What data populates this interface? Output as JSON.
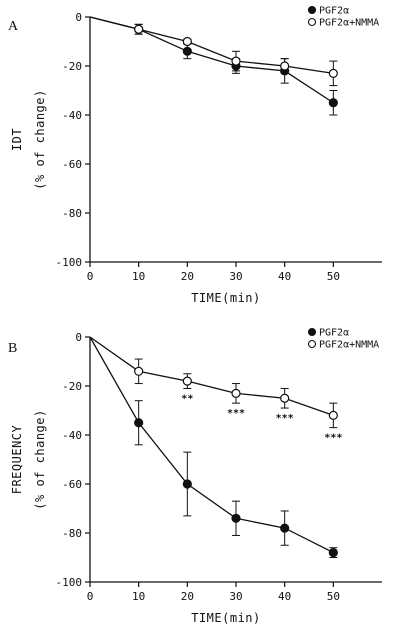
{
  "chart_data": [
    {
      "panel": "A",
      "type": "line",
      "x": [
        0,
        10,
        20,
        30,
        40,
        50
      ],
      "xticks": [
        0,
        10,
        20,
        30,
        40,
        50
      ],
      "yticks": [
        0,
        -20,
        -40,
        -60,
        -80,
        -100
      ],
      "xlim": [
        0,
        60
      ],
      "ylim": [
        -100,
        0
      ],
      "xlabel": "TIME(min)",
      "ylabel": "IDT",
      "ylabel_sub": "(% of change)",
      "legend_position": "top-right",
      "series": [
        {
          "name": "PGF2α",
          "marker": "filled-circle",
          "values": [
            0,
            -5,
            -14,
            -20,
            -22,
            -35
          ],
          "errors": [
            0,
            2,
            3,
            3,
            5,
            5
          ]
        },
        {
          "name": "PGF2α+NMMA",
          "marker": "open-circle",
          "values": [
            0,
            -5,
            -10,
            -18,
            -20,
            -23
          ],
          "errors": [
            0,
            2,
            1,
            4,
            3,
            5
          ]
        }
      ],
      "annotations": []
    },
    {
      "panel": "B",
      "type": "line",
      "x": [
        0,
        10,
        20,
        30,
        40,
        50
      ],
      "xticks": [
        0,
        10,
        20,
        30,
        40,
        50
      ],
      "yticks": [
        0,
        -20,
        -40,
        -60,
        -80,
        -100
      ],
      "xlim": [
        0,
        60
      ],
      "ylim": [
        -100,
        0
      ],
      "xlabel": "TIME(min)",
      "ylabel": "FREQUENCY",
      "ylabel_sub": "(% of change)",
      "legend_position": "top-right",
      "series": [
        {
          "name": "PGF2α",
          "marker": "filled-circle",
          "values": [
            0,
            -35,
            -60,
            -74,
            -78,
            -88
          ],
          "errors": [
            0,
            9,
            13,
            7,
            7,
            2
          ]
        },
        {
          "name": "PGF2α+NMMA",
          "marker": "open-circle",
          "values": [
            0,
            -14,
            -18,
            -23,
            -25,
            -32
          ],
          "errors": [
            0,
            5,
            3,
            4,
            4,
            5
          ]
        }
      ],
      "annotations": [
        {
          "x": 20,
          "text": "**"
        },
        {
          "x": 30,
          "text": "***"
        },
        {
          "x": 40,
          "text": "***"
        },
        {
          "x": 50,
          "text": "***"
        }
      ]
    }
  ]
}
